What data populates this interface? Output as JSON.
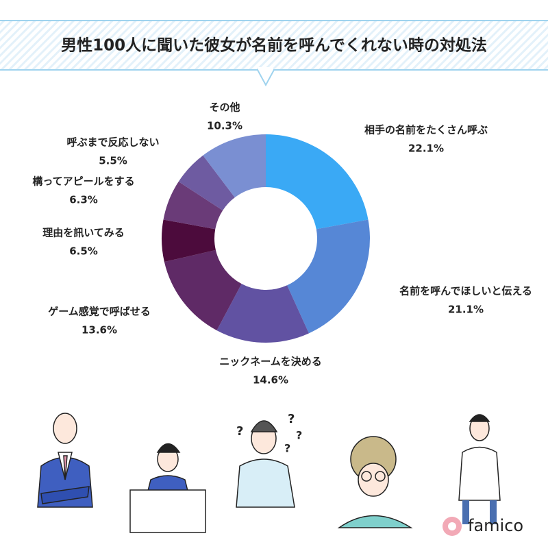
{
  "chart_data": {
    "type": "donut",
    "title": "男性100人に聞いた彼女が名前を呼んでくれない時の対処法",
    "categories": [
      "相手の名前をたくさん呼ぶ",
      "名前を呼んでほしいと伝える",
      "ニックネームを決める",
      "ゲーム感覚で呼ばせる",
      "理由を訊いてみる",
      "構ってアピールをする",
      "呼ぶまで反応しない",
      "その他"
    ],
    "values": [
      22.1,
      21.1,
      14.6,
      13.6,
      6.5,
      6.3,
      5.5,
      10.3
    ],
    "value_labels": [
      "22.1%",
      "21.1%",
      "14.6%",
      "13.6%",
      "6.5%",
      "6.3%",
      "5.5%",
      "10.3%"
    ],
    "colors": [
      "#3aa9f5",
      "#5687d6",
      "#6152a2",
      "#5f2a66",
      "#4c0b3c",
      "#6a3b78",
      "#6e5ba1",
      "#7a8fd2"
    ]
  },
  "brand": "famico"
}
